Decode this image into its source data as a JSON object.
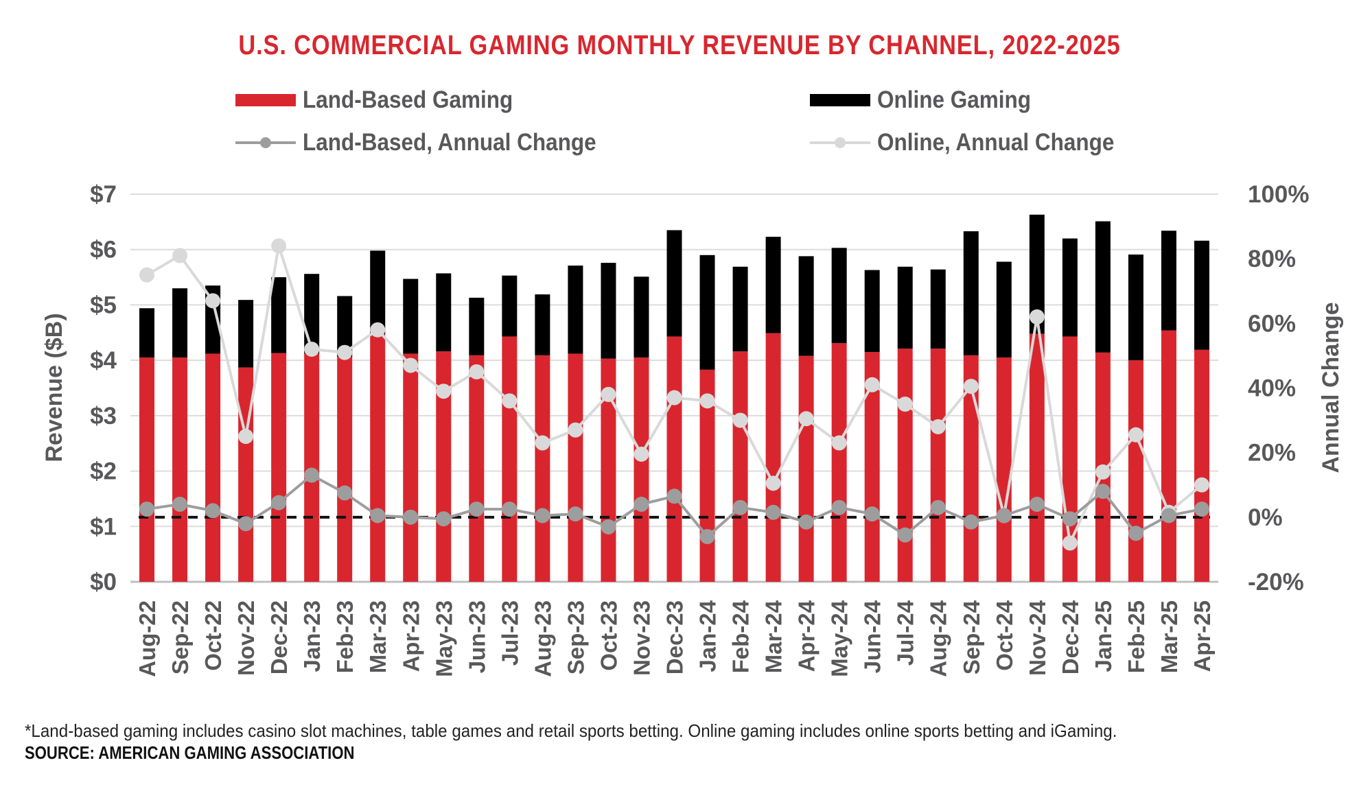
{
  "chart_data": {
    "type": "bar",
    "stacked": true,
    "title": "U.S. COMMERCIAL GAMING MONTHLY REVENUE BY CHANNEL, 2022-2025",
    "categories": [
      "Aug-22",
      "Sep-22",
      "Oct-22",
      "Nov-22",
      "Dec-22",
      "Jan-23",
      "Feb-23",
      "Mar-23",
      "Apr-23",
      "May-23",
      "Jun-23",
      "Jul-23",
      "Aug-23",
      "Sep-23",
      "Oct-23",
      "Nov-23",
      "Dec-23",
      "Jan-24",
      "Feb-24",
      "Mar-24",
      "Apr-24",
      "May-24",
      "Jun-24",
      "Jul-24",
      "Aug-24",
      "Sep-24",
      "Oct-24",
      "Nov-24",
      "Dec-24",
      "Jan-25",
      "Feb-25",
      "Mar-25",
      "Apr-25"
    ],
    "series": [
      {
        "name": "Land-Based Gaming",
        "kind": "bar",
        "axis": "left",
        "color": "#d9262e",
        "values": [
          4.05,
          4.05,
          4.12,
          3.87,
          4.13,
          4.12,
          4.06,
          4.47,
          4.12,
          4.16,
          4.09,
          4.43,
          4.09,
          4.12,
          4.03,
          4.05,
          4.43,
          3.83,
          4.16,
          4.49,
          4.08,
          4.31,
          4.15,
          4.21,
          4.21,
          4.09,
          4.05,
          4.48,
          4.43,
          4.14,
          4.0,
          4.54,
          4.19
        ]
      },
      {
        "name": "Online Gaming",
        "kind": "bar",
        "axis": "left",
        "color": "#000000",
        "values": [
          0.89,
          1.25,
          1.23,
          1.22,
          1.37,
          1.44,
          1.1,
          1.51,
          1.35,
          1.41,
          1.04,
          1.1,
          1.1,
          1.59,
          1.73,
          1.46,
          1.92,
          2.07,
          1.53,
          1.74,
          1.8,
          1.72,
          1.48,
          1.48,
          1.43,
          2.24,
          1.73,
          2.15,
          1.77,
          2.37,
          1.91,
          1.8,
          1.97
        ]
      },
      {
        "name": "Land-Based, Annual Change",
        "kind": "line",
        "axis": "right",
        "color": "#9d9d9d",
        "values": [
          2.5,
          4,
          2,
          -2,
          4.5,
          13,
          7.5,
          0.5,
          0,
          -0.5,
          2.5,
          2.5,
          0.5,
          1,
          -3,
          4,
          6.5,
          -6,
          3,
          1.5,
          -1.5,
          3,
          1,
          -5.5,
          3,
          -1.5,
          0.5,
          4,
          -0.5,
          8,
          -5,
          0.5,
          2.5
        ]
      },
      {
        "name": "Online, Annual Change",
        "kind": "line",
        "axis": "right",
        "color": "#d9d9d9",
        "values": [
          75,
          81,
          67,
          25,
          84,
          52,
          51,
          58,
          47,
          39,
          45,
          36,
          23,
          27,
          38,
          19.5,
          37,
          36,
          30,
          10.5,
          30.5,
          23,
          41,
          35,
          28,
          40.5,
          0.5,
          62,
          -8,
          14,
          25.5,
          1.5,
          10
        ]
      }
    ],
    "left_axis": {
      "label": "Revenue ($B)",
      "range": [
        0,
        7
      ],
      "ticks": [
        "$0",
        "$1",
        "$2",
        "$3",
        "$4",
        "$5",
        "$6",
        "$7"
      ]
    },
    "right_axis": {
      "label": "Annual Change",
      "range": [
        -20,
        100
      ],
      "ticks": [
        "-20%",
        "0%",
        "20%",
        "40%",
        "60%",
        "80%",
        "100%"
      ]
    },
    "reference_line": {
      "axis": "right",
      "value": 0,
      "style": "dashed"
    },
    "legend": {
      "placement": "top",
      "items": [
        {
          "label": "Land-Based Gaming",
          "symbol": "bar",
          "color": "#d9262e"
        },
        {
          "label": "Online Gaming",
          "symbol": "bar",
          "color": "#000000"
        },
        {
          "label": "Land-Based, Annual Change",
          "symbol": "line-marker",
          "color": "#9d9d9d"
        },
        {
          "label": "Online, Annual Change",
          "symbol": "line-marker",
          "color": "#d9d9d9"
        }
      ]
    }
  },
  "footnote": "*Land-based gaming includes casino slot machines, table games and retail sports betting. Online gaming includes online sports betting and iGaming.",
  "source": "SOURCE: AMERICAN GAMING ASSOCIATION"
}
